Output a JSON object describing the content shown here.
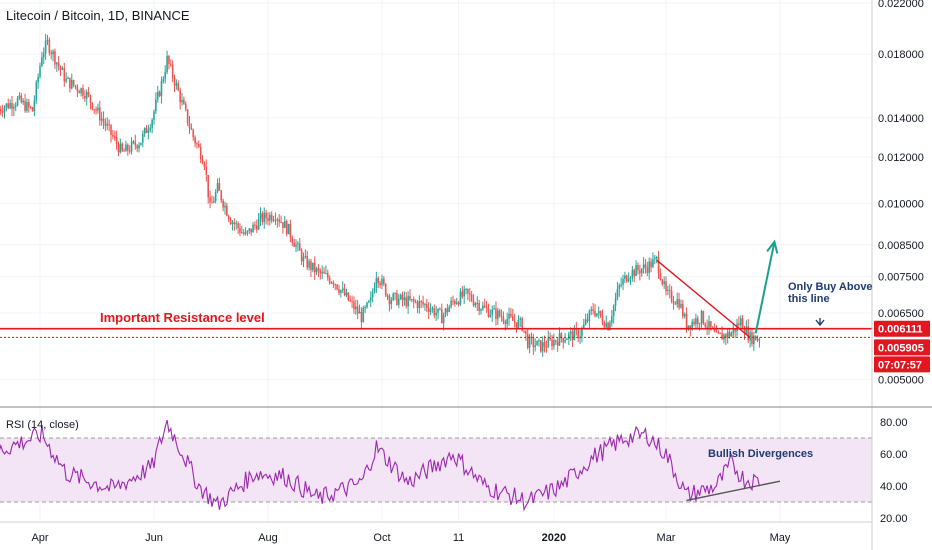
{
  "header": {
    "symbol_title": "Litecoin / Bitcoin, 1D, BINANCE"
  },
  "colors": {
    "up": "#26a69a",
    "down": "#ef5350",
    "resistance": "#e0171e",
    "rsi_line": "#9c27b0",
    "rsi_band": "#f3e5f5",
    "arrow": "#1aa08f",
    "annotation_blue": "#1e3a6e",
    "bullish_line": "#555555"
  },
  "price_axis": {
    "ticks": [
      "0.022000",
      "0.018000",
      "0.014000",
      "0.012000",
      "0.010000",
      "0.008500",
      "0.007500",
      "0.006500",
      "0.005000"
    ],
    "scale": "log"
  },
  "price_badges": [
    {
      "label": "0.006111",
      "color": "#e0171e"
    },
    {
      "label": "0.005905",
      "color": "#e0171e"
    },
    {
      "label": "07:07:57",
      "color": "#e0171e"
    }
  ],
  "rsi": {
    "title": "RSI (14, close)",
    "ticks": [
      "80.00",
      "60.00",
      "40.00",
      "20.00"
    ],
    "overbought": 70,
    "oversold": 30
  },
  "time_axis": {
    "labels": [
      "Apr",
      "Jun",
      "Aug",
      "Oct",
      "11",
      "2020",
      "Mar",
      "May"
    ]
  },
  "annotations": {
    "resistance": "Important Resistance level",
    "only_buy_line1": "Only Buy Above",
    "only_buy_line2": "this line",
    "divergence": "Bullish Divergences"
  },
  "chart_data": {
    "type": "candlestick",
    "symbol": "LTCBTC",
    "timeframe": "1D",
    "exchange": "BINANCE",
    "price_ylim": [
      0.0045,
      0.022
    ],
    "resistance_level": 0.006111,
    "last_price": 0.005905,
    "price_path": [
      [
        "2019-03-10",
        0.0145
      ],
      [
        "2019-03-20",
        0.015
      ],
      [
        "2019-03-28",
        0.0144
      ],
      [
        "2019-04-02",
        0.018
      ],
      [
        "2019-04-05",
        0.0188
      ],
      [
        "2019-04-15",
        0.0162
      ],
      [
        "2019-04-25",
        0.0155
      ],
      [
        "2019-05-05",
        0.0138
      ],
      [
        "2019-05-15",
        0.0122
      ],
      [
        "2019-05-25",
        0.0128
      ],
      [
        "2019-05-31",
        0.014
      ],
      [
        "2019-06-05",
        0.016
      ],
      [
        "2019-06-08",
        0.0176
      ],
      [
        "2019-06-12",
        0.0162
      ],
      [
        "2019-06-22",
        0.013
      ],
      [
        "2019-06-28",
        0.0118
      ],
      [
        "2019-07-01",
        0.0098
      ],
      [
        "2019-07-05",
        0.0106
      ],
      [
        "2019-07-12",
        0.0094
      ],
      [
        "2019-07-20",
        0.0088
      ],
      [
        "2019-07-28",
        0.0094
      ],
      [
        "2019-08-05",
        0.0096
      ],
      [
        "2019-08-12",
        0.009
      ],
      [
        "2019-08-20",
        0.008
      ],
      [
        "2019-08-28",
        0.0076
      ],
      [
        "2019-09-05",
        0.0074
      ],
      [
        "2019-09-12",
        0.0069
      ],
      [
        "2019-09-20",
        0.0064
      ],
      [
        "2019-09-25",
        0.0068
      ],
      [
        "2019-09-28",
        0.0076
      ],
      [
        "2019-10-05",
        0.0069
      ],
      [
        "2019-10-15",
        0.0068
      ],
      [
        "2019-10-25",
        0.0067
      ],
      [
        "2019-11-02",
        0.0064
      ],
      [
        "2019-11-08",
        0.0068
      ],
      [
        "2019-11-15",
        0.007
      ],
      [
        "2019-11-25",
        0.0066
      ],
      [
        "2019-12-05",
        0.0064
      ],
      [
        "2019-12-15",
        0.0062
      ],
      [
        "2019-12-18",
        0.0058
      ],
      [
        "2019-12-25",
        0.0057
      ],
      [
        "2020-01-05",
        0.0059
      ],
      [
        "2020-01-15",
        0.006
      ],
      [
        "2020-01-22",
        0.0066
      ],
      [
        "2020-01-30",
        0.0062
      ],
      [
        "2020-02-05",
        0.0072
      ],
      [
        "2020-02-10",
        0.0076
      ],
      [
        "2020-02-20",
        0.0078
      ],
      [
        "2020-02-25",
        0.008
      ],
      [
        "2020-03-01",
        0.007
      ],
      [
        "2020-03-08",
        0.0068
      ],
      [
        "2020-03-12",
        0.0062
      ],
      [
        "2020-03-20",
        0.0064
      ],
      [
        "2020-03-28",
        0.0059
      ],
      [
        "2020-04-05",
        0.006
      ],
      [
        "2020-04-10",
        0.0063
      ],
      [
        "2020-04-15",
        0.0059
      ],
      [
        "2020-04-20",
        0.0059
      ]
    ],
    "rsi_path": [
      [
        "2019-03-10",
        62
      ],
      [
        "2019-04-02",
        72
      ],
      [
        "2019-04-15",
        48
      ],
      [
        "2019-05-10",
        38
      ],
      [
        "2019-05-31",
        52
      ],
      [
        "2019-06-08",
        80
      ],
      [
        "2019-06-25",
        40
      ],
      [
        "2019-07-05",
        28
      ],
      [
        "2019-07-25",
        48
      ],
      [
        "2019-08-10",
        46
      ],
      [
        "2019-08-28",
        32
      ],
      [
        "2019-09-20",
        42
      ],
      [
        "2019-09-28",
        64
      ],
      [
        "2019-10-15",
        42
      ],
      [
        "2019-11-08",
        60
      ],
      [
        "2019-11-25",
        40
      ],
      [
        "2019-12-18",
        30
      ],
      [
        "2020-01-05",
        40
      ],
      [
        "2020-01-22",
        58
      ],
      [
        "2020-02-08",
        70
      ],
      [
        "2020-02-20",
        72
      ],
      [
        "2020-03-01",
        60
      ],
      [
        "2020-03-12",
        34
      ],
      [
        "2020-03-28",
        40
      ],
      [
        "2020-04-05",
        54
      ],
      [
        "2020-04-12",
        44
      ],
      [
        "2020-04-20",
        43
      ]
    ],
    "drawings": [
      {
        "type": "trendline",
        "points": [
          [
            "2020-02-25",
            0.008
          ],
          [
            "2020-04-15",
            0.0059
          ]
        ]
      },
      {
        "type": "arrow",
        "points": [
          [
            "2020-04-18",
            0.006
          ],
          [
            "2020-04-28",
            0.0086
          ]
        ]
      },
      {
        "type": "rsi_trendline",
        "points": [
          [
            "2020-03-12",
            31
          ],
          [
            "2020-05-01",
            43
          ]
        ]
      }
    ]
  }
}
